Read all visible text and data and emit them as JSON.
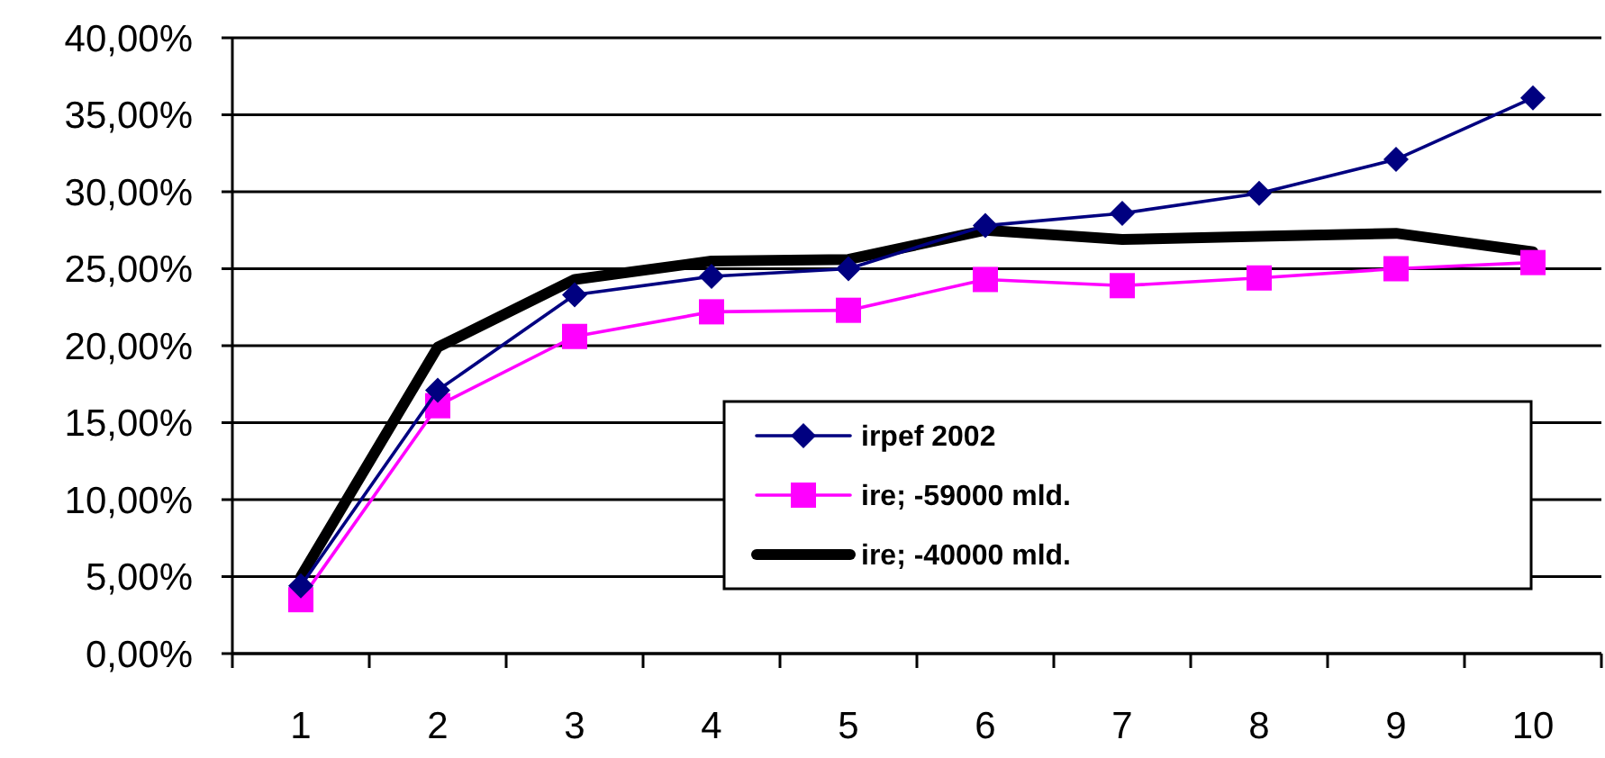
{
  "chart_data": {
    "type": "line",
    "categories": [
      "1",
      "2",
      "3",
      "4",
      "5",
      "6",
      "7",
      "8",
      "9",
      "10"
    ],
    "ylim": [
      0,
      0.4
    ],
    "yticks": [
      {
        "value": 0,
        "label": "0,00%"
      },
      {
        "value": 0.05,
        "label": "5,00%"
      },
      {
        "value": 0.1,
        "label": "10,00%"
      },
      {
        "value": 0.15,
        "label": "15,00%"
      },
      {
        "value": 0.2,
        "label": "20,00%"
      },
      {
        "value": 0.25,
        "label": "25,00%"
      },
      {
        "value": 0.3,
        "label": "30,00%"
      },
      {
        "value": 0.35,
        "label": "35,00%"
      },
      {
        "value": 0.4,
        "label": "40,00%"
      }
    ],
    "grid": "y",
    "legend": "bottom right",
    "series": [
      {
        "name": "irpef 2002",
        "color": "#000080",
        "marker": "diamond",
        "values": [
          0.044,
          0.171,
          0.233,
          0.245,
          0.25,
          0.278,
          0.286,
          0.299,
          0.321,
          0.361
        ]
      },
      {
        "name": "ire; -59000 mld.",
        "color": "#ff00ff",
        "marker": "square",
        "values": [
          0.035,
          0.161,
          0.206,
          0.222,
          0.223,
          0.243,
          0.239,
          0.244,
          0.25,
          0.254
        ]
      },
      {
        "name": "ire; -40000 mld.",
        "color": "#000000",
        "marker": "none",
        "values": [
          0.05,
          0.199,
          0.243,
          0.255,
          0.256,
          0.275,
          0.269,
          0.271,
          0.273,
          0.261
        ]
      }
    ]
  }
}
